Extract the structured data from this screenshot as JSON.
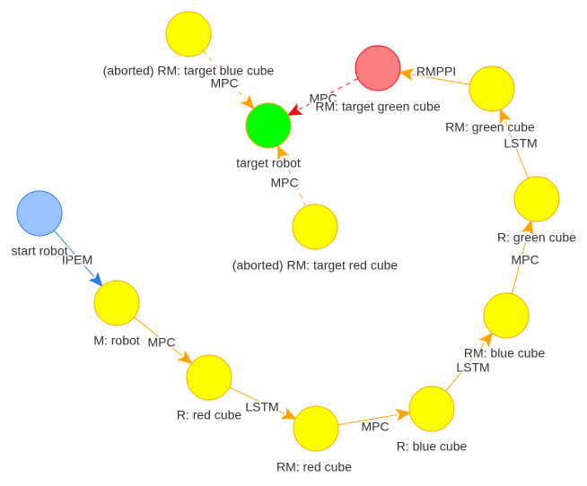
{
  "nodes": [
    {
      "id": "start",
      "label": "start robot",
      "fill": "#99c2ff",
      "stroke": "#2b7ce9"
    },
    {
      "id": "m_robot",
      "label": "M: robot",
      "fill": "#ffff00",
      "stroke": "#ffa500"
    },
    {
      "id": "r_red",
      "label": "R: red cube",
      "fill": "#ffff00",
      "stroke": "#ffa500"
    },
    {
      "id": "rm_red",
      "label": "RM: red cube",
      "fill": "#ffff00",
      "stroke": "#ffa500"
    },
    {
      "id": "r_blue",
      "label": "R: blue cube",
      "fill": "#ffff00",
      "stroke": "#ffa500"
    },
    {
      "id": "rm_blue",
      "label": "RM: blue cube",
      "fill": "#ffff00",
      "stroke": "#ffa500"
    },
    {
      "id": "r_green",
      "label": "R: green cube",
      "fill": "#ffff00",
      "stroke": "#ffa500"
    },
    {
      "id": "rm_green",
      "label": "RM: green cube",
      "fill": "#ffff00",
      "stroke": "#ffa500"
    },
    {
      "id": "rm_target_green",
      "label": "RM: target green cube",
      "fill": "#fb7e81",
      "stroke": "#fa0a10"
    },
    {
      "id": "target_robot",
      "label": "target robot",
      "fill": "#00ff00",
      "stroke": "#ffa500"
    },
    {
      "id": "aborted_blue",
      "label": "(aborted) RM: target blue cube",
      "fill": "#ffff00",
      "stroke": "#ffa500"
    },
    {
      "id": "aborted_red",
      "label": "(aborted) RM: target red cube",
      "fill": "#ffff00",
      "stroke": "#ffa500"
    }
  ],
  "edges": [
    {
      "from": "start",
      "to": "m_robot",
      "label": "IPEM",
      "color": "#2b7ce9",
      "dashed": false
    },
    {
      "from": "m_robot",
      "to": "r_red",
      "label": "MPC",
      "color": "#ffa500",
      "dashed": false
    },
    {
      "from": "r_red",
      "to": "rm_red",
      "label": "LSTM",
      "color": "#ffa500",
      "dashed": false
    },
    {
      "from": "rm_red",
      "to": "r_blue",
      "label": "MPC",
      "color": "#ffa500",
      "dashed": false
    },
    {
      "from": "r_blue",
      "to": "rm_blue",
      "label": "LSTM",
      "color": "#ffa500",
      "dashed": false
    },
    {
      "from": "rm_blue",
      "to": "r_green",
      "label": "MPC",
      "color": "#ffa500",
      "dashed": false
    },
    {
      "from": "r_green",
      "to": "rm_green",
      "label": "LSTM",
      "color": "#ffa500",
      "dashed": false
    },
    {
      "from": "rm_green",
      "to": "rm_target_green",
      "label": "RMPPI",
      "color": "#ffa500",
      "dashed": false
    },
    {
      "from": "rm_target_green",
      "to": "target_robot",
      "label": "MPC",
      "color": "#fa0a10",
      "dashed": true
    },
    {
      "from": "aborted_blue",
      "to": "target_robot",
      "label": "MPC",
      "color": "#ffa500",
      "dashed": true
    },
    {
      "from": "aborted_red",
      "to": "target_robot",
      "label": "MPC",
      "color": "#ffa500",
      "dashed": true
    }
  ]
}
